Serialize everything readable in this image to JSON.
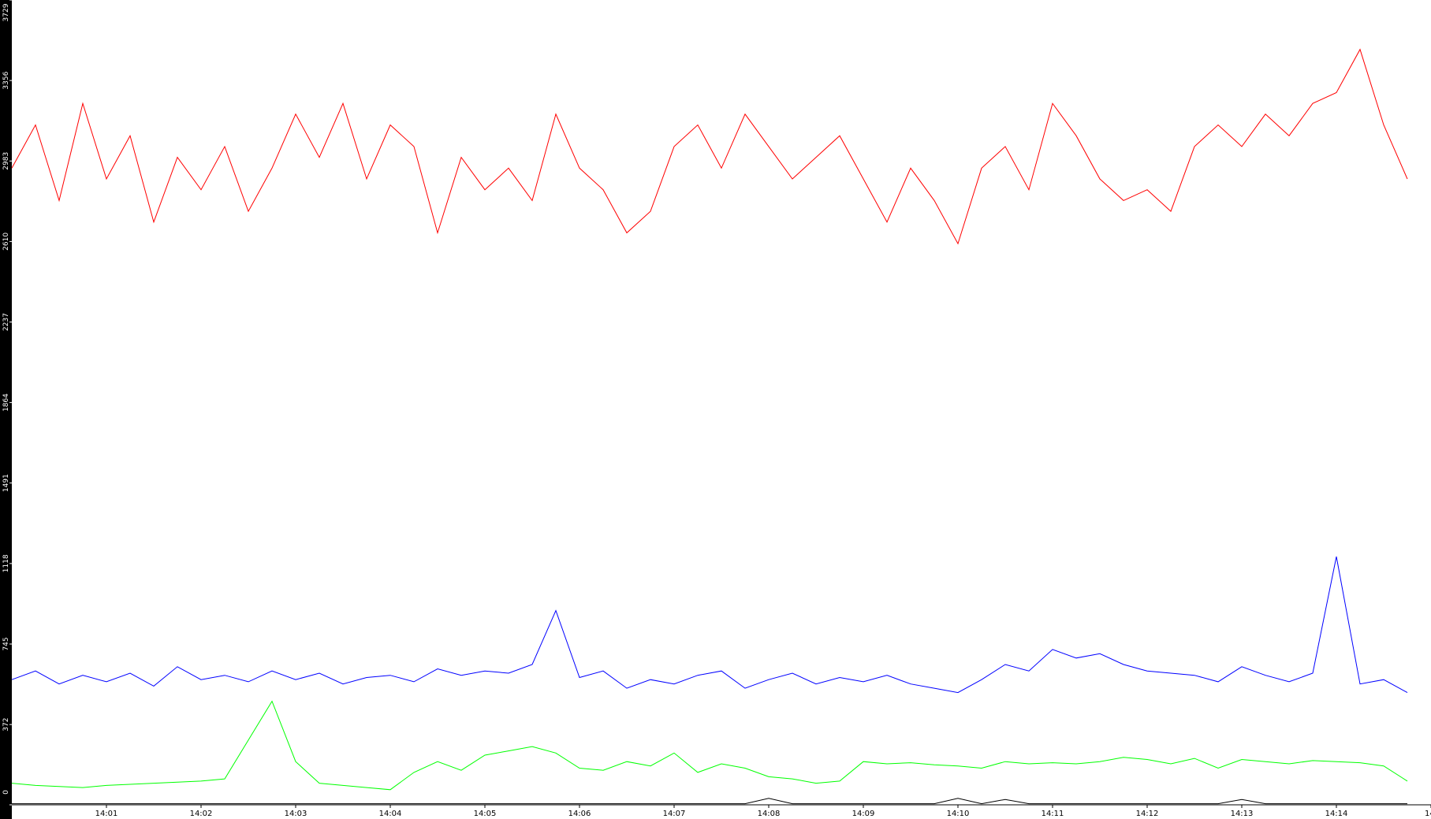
{
  "chart_data": {
    "type": "line",
    "x": [
      0,
      0.25,
      0.5,
      0.75,
      1,
      1.25,
      1.5,
      1.75,
      2,
      2.25,
      2.5,
      2.75,
      3,
      3.25,
      3.5,
      3.75,
      4,
      4.25,
      4.5,
      4.75,
      5,
      5.25,
      5.5,
      5.75,
      6,
      6.25,
      6.5,
      6.75,
      7,
      7.25,
      7.5,
      7.75,
      8,
      8.25,
      8.5,
      8.75,
      9,
      9.25,
      9.5,
      9.75,
      10,
      10.25,
      10.5,
      10.75,
      11,
      11.25,
      11.5,
      11.75,
      12,
      12.25,
      12.5,
      12.75,
      13,
      13.25,
      13.5,
      13.75,
      14,
      14.25,
      14.5,
      14.75
    ],
    "series": [
      {
        "color": "#ff0000",
        "values": [
          2950,
          3150,
          2800,
          3250,
          2900,
          3100,
          2700,
          3000,
          2850,
          3050,
          2750,
          2950,
          3200,
          3000,
          3250,
          2900,
          3150,
          3050,
          2650,
          3000,
          2850,
          2950,
          2800,
          3200,
          2950,
          2850,
          2650,
          2750,
          3050,
          3150,
          2950,
          3200,
          3050,
          2900,
          3000,
          3100,
          2900,
          2700,
          2950,
          2800,
          2600,
          2950,
          3050,
          2850,
          3250,
          3100,
          2900,
          2800,
          2850,
          2750,
          3050,
          3150,
          3050,
          3200,
          3100,
          3250,
          3300,
          3500,
          3150,
          2900
        ]
      },
      {
        "color": "#0000ff",
        "values": [
          580,
          620,
          560,
          600,
          570,
          610,
          550,
          640,
          580,
          600,
          570,
          620,
          580,
          610,
          560,
          590,
          600,
          570,
          630,
          600,
          620,
          610,
          650,
          900,
          590,
          620,
          540,
          580,
          560,
          600,
          620,
          540,
          580,
          610,
          560,
          590,
          570,
          600,
          560,
          540,
          520,
          580,
          650,
          620,
          720,
          680,
          700,
          650,
          620,
          610,
          600,
          570,
          640,
          600,
          570,
          610,
          1150,
          560,
          580,
          520
        ]
      },
      {
        "color": "#00ff00",
        "values": [
          100,
          90,
          85,
          80,
          90,
          95,
          100,
          105,
          110,
          120,
          300,
          480,
          200,
          100,
          90,
          80,
          70,
          150,
          200,
          160,
          230,
          250,
          270,
          240,
          170,
          160,
          200,
          180,
          240,
          150,
          190,
          170,
          130,
          120,
          100,
          110,
          200,
          190,
          195,
          185,
          180,
          170,
          200,
          190,
          195,
          190,
          200,
          220,
          210,
          190,
          215,
          170,
          210,
          200,
          190,
          205,
          200,
          195,
          180,
          110
        ]
      },
      {
        "color": "#000000",
        "values": [
          5,
          5,
          5,
          5,
          5,
          5,
          5,
          5,
          5,
          5,
          5,
          5,
          5,
          5,
          5,
          5,
          5,
          5,
          5,
          5,
          5,
          5,
          5,
          5,
          5,
          5,
          5,
          5,
          5,
          5,
          5,
          5,
          30,
          5,
          5,
          5,
          5,
          5,
          5,
          5,
          30,
          5,
          25,
          5,
          5,
          5,
          5,
          5,
          5,
          5,
          5,
          5,
          25,
          5,
          5,
          5,
          5,
          5,
          5,
          5
        ]
      }
    ],
    "xlim": [
      0,
      15
    ],
    "xticks": [
      {
        "value": 1,
        "label": "14:01"
      },
      {
        "value": 2,
        "label": "14:02"
      },
      {
        "value": 3,
        "label": "14:03"
      },
      {
        "value": 4,
        "label": "14:04"
      },
      {
        "value": 5,
        "label": "14:05"
      },
      {
        "value": 6,
        "label": "14:06"
      },
      {
        "value": 7,
        "label": "14:07"
      },
      {
        "value": 8,
        "label": "14:08"
      },
      {
        "value": 9,
        "label": "14:09"
      },
      {
        "value": 10,
        "label": "14:10"
      },
      {
        "value": 11,
        "label": "14:11"
      },
      {
        "value": 12,
        "label": "14:12"
      },
      {
        "value": 13,
        "label": "14:13"
      },
      {
        "value": 14,
        "label": "14:14"
      },
      {
        "value": 15,
        "label": "14:"
      }
    ],
    "ylim": [
      0,
      3729
    ],
    "yticks": [
      0,
      372,
      745,
      1118,
      1491,
      1864,
      2237,
      2610,
      2983,
      3356,
      3729
    ]
  }
}
